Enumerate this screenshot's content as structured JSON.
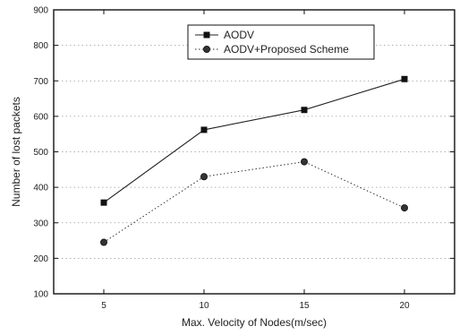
{
  "chart_data": {
    "type": "line",
    "xlabel": "Max. Velocity of Nodes(m/sec)",
    "ylabel": "Number of lost packets",
    "xlim": [
      2.5,
      22.5
    ],
    "ylim": [
      100,
      900
    ],
    "x_ticks": [
      5,
      10,
      15,
      20
    ],
    "y_ticks": [
      100,
      200,
      300,
      400,
      500,
      600,
      700,
      800,
      900
    ],
    "grid": "y-dotted",
    "legend_position": "top-left",
    "series": [
      {
        "name": "AODV",
        "marker": "square",
        "line_style": "solid",
        "x": [
          5,
          10,
          15,
          20
        ],
        "values": [
          357,
          562,
          618,
          705
        ]
      },
      {
        "name": "AODV+Proposed Scheme",
        "marker": "circle",
        "line_style": "dotted",
        "x": [
          5,
          10,
          15,
          20
        ],
        "values": [
          245,
          430,
          472,
          342
        ]
      }
    ]
  }
}
